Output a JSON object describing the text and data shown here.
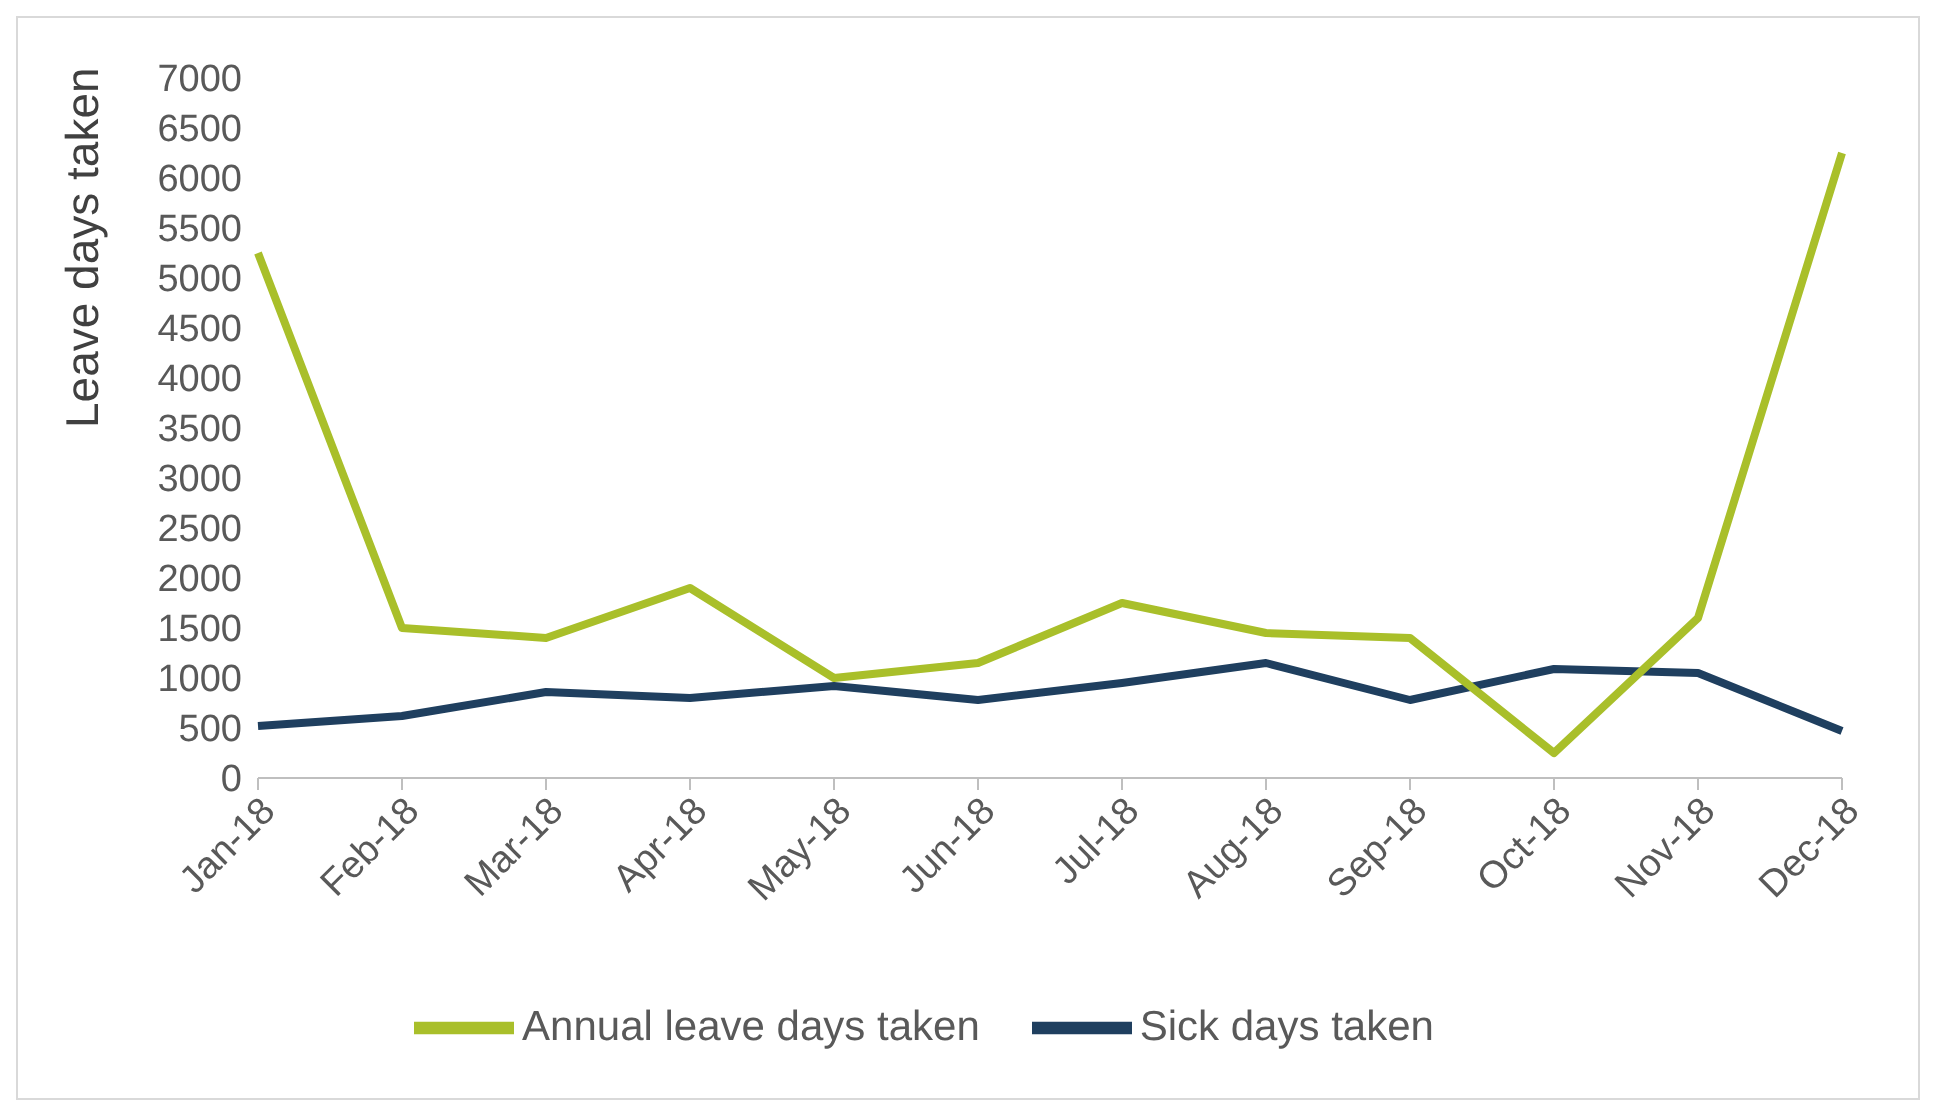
{
  "chart_data": {
    "type": "line",
    "ylabel": "Leave days taken",
    "categories": [
      "Jan-18",
      "Feb-18",
      "Mar-18",
      "Apr-18",
      "May-18",
      "Jun-18",
      "Jul-18",
      "Aug-18",
      "Sep-18",
      "Oct-18",
      "Nov-18",
      "Dec-18"
    ],
    "series": [
      {
        "name": "Sick days taken",
        "color": "#1f3f5f",
        "values": [
          520,
          620,
          860,
          800,
          920,
          780,
          950,
          1150,
          780,
          1090,
          1050,
          470
        ]
      },
      {
        "name": "Annual leave days taken",
        "color": "#a9bf2a",
        "values": [
          5250,
          1500,
          1400,
          1900,
          1000,
          1150,
          1750,
          1450,
          1400,
          250,
          1600,
          6250
        ]
      }
    ],
    "ylim": [
      0,
      7000
    ],
    "yticks": [
      0,
      500,
      1000,
      1500,
      2000,
      2500,
      3000,
      3500,
      4000,
      4500,
      5000,
      5500,
      6000,
      6500,
      7000
    ],
    "grid": false,
    "legend": "bottom",
    "marker": "none",
    "line_style": "solid"
  }
}
